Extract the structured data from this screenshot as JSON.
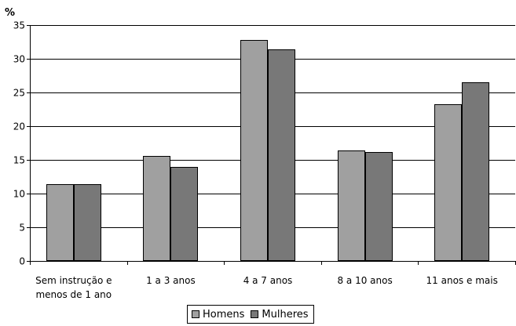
{
  "chart_data": {
    "type": "bar",
    "unit_label": "%",
    "categories": [
      [
        "Sem instrução e",
        "menos de 1 ano"
      ],
      [
        "1 a   3 anos"
      ],
      [
        "4 a   7 anos"
      ],
      [
        "8 a 10 anos"
      ],
      [
        "11 anos e mais"
      ]
    ],
    "series": [
      {
        "name": "Homens",
        "color": "#a0a0a0",
        "values": [
          11.4,
          15.6,
          32.8,
          16.4,
          23.2
        ]
      },
      {
        "name": "Mulheres",
        "color": "#787878",
        "values": [
          11.4,
          14.0,
          31.4,
          16.2,
          26.5
        ]
      }
    ],
    "ylim": [
      0,
      35
    ],
    "yticks": [
      0,
      5,
      10,
      15,
      20,
      25,
      30,
      35
    ],
    "grid": true,
    "legend_position": "bottom"
  }
}
